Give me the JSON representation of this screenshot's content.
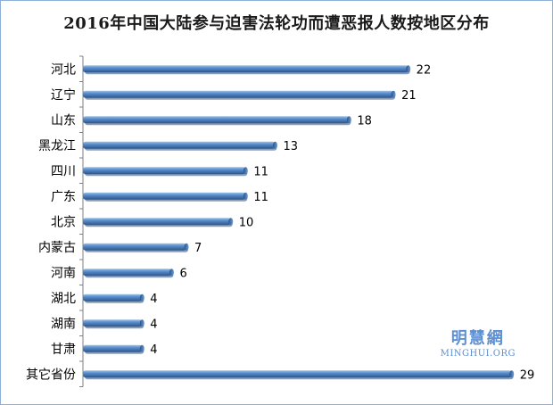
{
  "chart_data": {
    "type": "bar",
    "orientation": "horizontal",
    "title": "2016年中国大陆参与迫害法轮功而遭恶报人数按地区分布",
    "categories": [
      "河北",
      "辽宁",
      "山东",
      "黑龙江",
      "四川",
      "广东",
      "北京",
      "内蒙古",
      "河南",
      "湖北",
      "湖南",
      "甘肃",
      "其它省份"
    ],
    "values": [
      22,
      21,
      18,
      13,
      11,
      11,
      10,
      7,
      6,
      4,
      4,
      4,
      29
    ],
    "xlabel": "",
    "ylabel": "",
    "xlim": [
      0,
      29.5
    ],
    "grid": false,
    "legend": "none",
    "colors": {
      "bar": "#4f81bd",
      "bar_highlight": "#9dc3e6",
      "bar_shadow": "#2c4f7c",
      "axis": "#808080"
    }
  },
  "watermark": {
    "main": "明慧網",
    "sub": "MINGHUI.ORG",
    "color": "#5d8fd2"
  }
}
